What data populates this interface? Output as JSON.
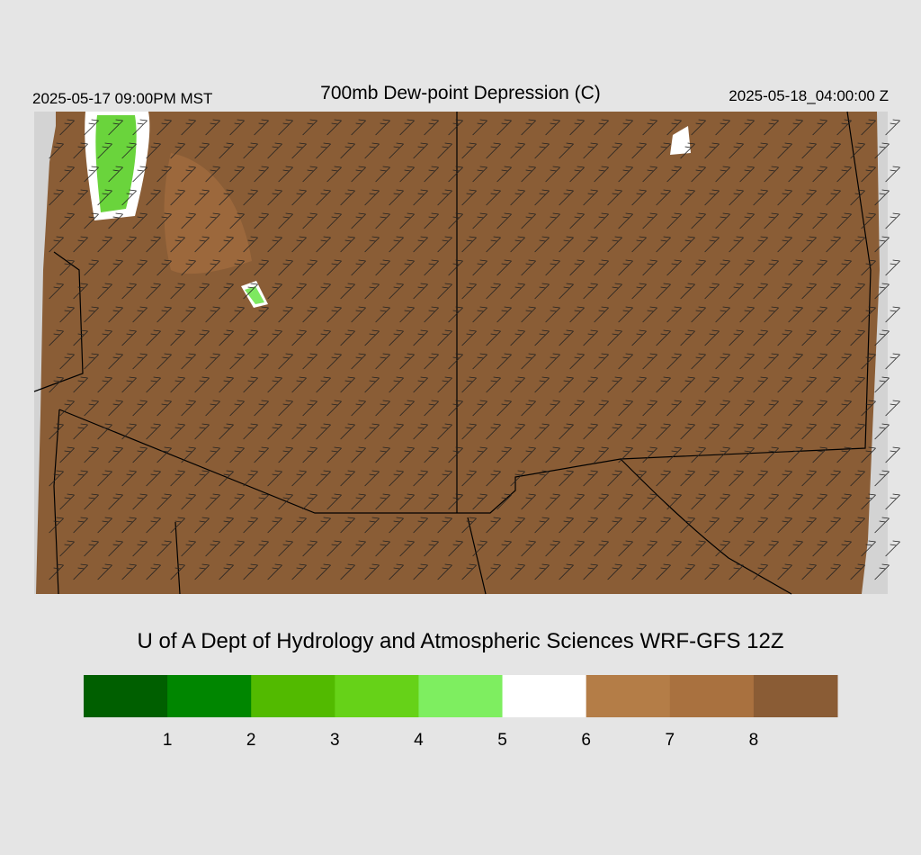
{
  "header": {
    "left": "2025-05-17 09:00PM MST",
    "title": "700mb Dew-point Depression (C)",
    "right": "2025-05-18_04:00:00 Z"
  },
  "credit": "U of A Dept of Hydrology and Atmospheric Sciences WRF-GFS 12Z",
  "colorbar": {
    "colors": [
      "#005f00",
      "#008600",
      "#52ba00",
      "#66d218",
      "#7eee60",
      "#ffffff",
      "#b47d47",
      "#a9713f",
      "#8a5c35"
    ],
    "ticks": [
      1,
      2,
      3,
      4,
      5,
      6,
      7,
      8
    ]
  }
}
